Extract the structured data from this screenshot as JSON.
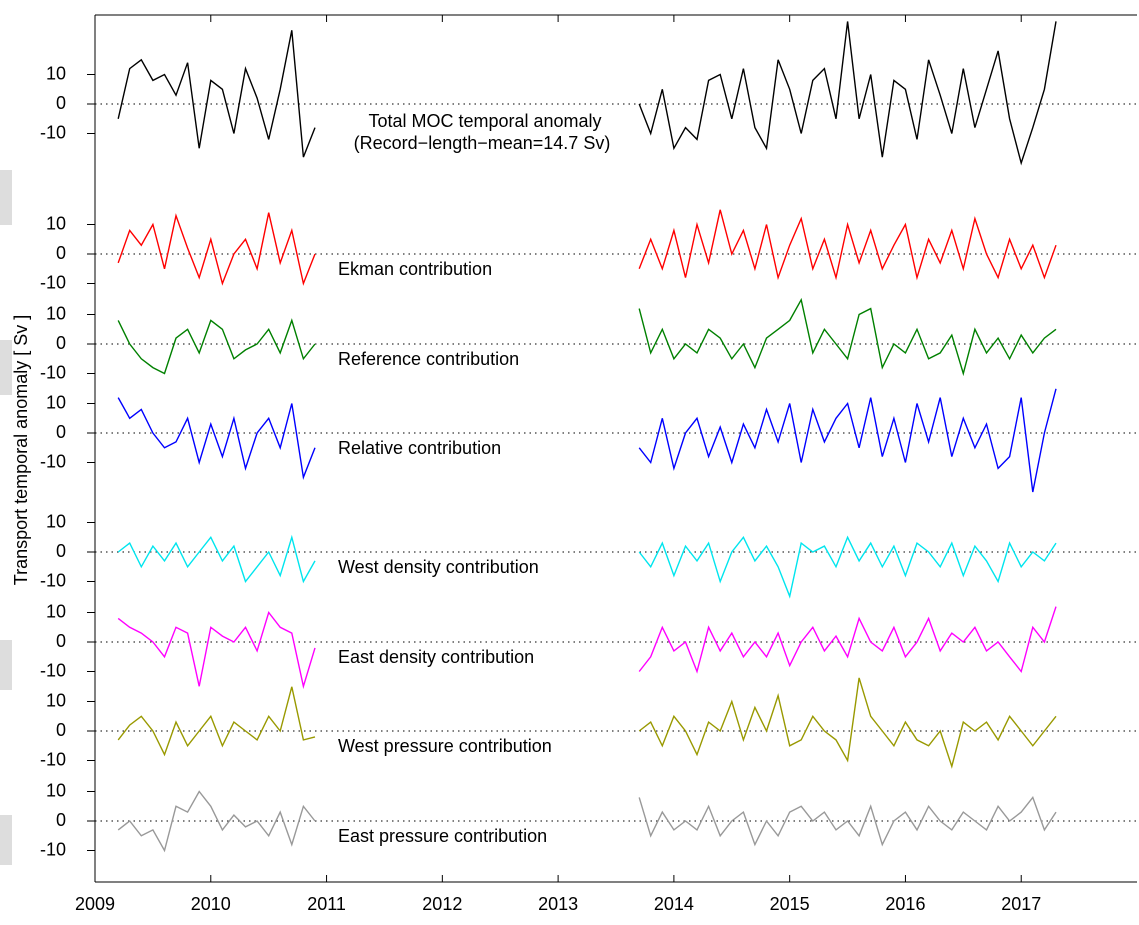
{
  "chart_data": {
    "type": "line",
    "ylabel": "Transport temporal anomaly [ Sv ]",
    "note": "(Record−length−mean=14.7 Sv)",
    "xlim": [
      2009,
      2018
    ],
    "xticks": [
      2009,
      2010,
      2011,
      2012,
      2013,
      2014,
      2015,
      2016,
      2017
    ],
    "x": [
      2009.2,
      2009.3,
      2009.4,
      2009.5,
      2009.6,
      2009.7,
      2009.8,
      2009.9,
      2010,
      2010.1,
      2010.2,
      2010.3,
      2010.4,
      2010.5,
      2010.6,
      2010.7,
      2010.8,
      2010.9,
      2012,
      2013.7,
      2013.8,
      2013.9,
      2014,
      2014.1,
      2014.2,
      2014.3,
      2014.4,
      2014.5,
      2014.6,
      2014.7,
      2014.8,
      2014.9,
      2015,
      2015.1,
      2015.2,
      2015.3,
      2015.4,
      2015.5,
      2015.6,
      2015.7,
      2015.8,
      2015.9,
      2016,
      2016.1,
      2016.2,
      2016.3,
      2016.4,
      2016.5,
      2016.6,
      2016.7,
      2016.8,
      2016.9,
      2017,
      2017.1,
      2017.2,
      2017.3
    ],
    "series": [
      {
        "name": "Total MOC temporal anomaly",
        "color": "#000000",
        "ylim": [
          -30,
          30
        ],
        "yticks": [
          -10,
          0,
          10
        ],
        "values": [
          -5,
          12,
          15,
          8,
          10,
          3,
          14,
          -15,
          8,
          5,
          -10,
          12,
          2,
          -12,
          5,
          25,
          -18,
          -8,
          null,
          0,
          -10,
          5,
          -15,
          -8,
          -12,
          8,
          10,
          -5,
          12,
          -8,
          -15,
          15,
          5,
          -10,
          8,
          12,
          -5,
          28,
          -5,
          10,
          -18,
          8,
          5,
          -12,
          15,
          3,
          -10,
          12,
          -8,
          5,
          18,
          -5,
          -20,
          -8,
          5,
          28
        ]
      },
      {
        "name": "Ekman contribution",
        "color": "#ff0000",
        "ylim": [
          -15,
          15
        ],
        "yticks": [
          -10,
          0,
          10
        ],
        "values": [
          -3,
          8,
          3,
          10,
          -5,
          13,
          2,
          -8,
          5,
          -10,
          0,
          5,
          -5,
          14,
          -3,
          8,
          -10,
          0,
          null,
          -5,
          5,
          -5,
          8,
          -8,
          10,
          -3,
          15,
          0,
          8,
          -5,
          10,
          -8,
          3,
          12,
          -5,
          5,
          -8,
          10,
          -3,
          8,
          -5,
          3,
          10,
          -8,
          5,
          -3,
          8,
          -5,
          12,
          0,
          -8,
          5,
          -5,
          3,
          -8,
          3
        ]
      },
      {
        "name": "Reference contribution",
        "color": "#008000",
        "ylim": [
          -15,
          15
        ],
        "yticks": [
          -10,
          0,
          10
        ],
        "values": [
          8,
          0,
          -5,
          -8,
          -10,
          2,
          5,
          -3,
          8,
          5,
          -5,
          -2,
          0,
          5,
          -3,
          8,
          -5,
          0,
          null,
          12,
          -3,
          5,
          -5,
          0,
          -3,
          5,
          2,
          -5,
          0,
          -8,
          2,
          5,
          8,
          15,
          -3,
          5,
          0,
          -5,
          10,
          12,
          -8,
          0,
          -3,
          5,
          -5,
          -3,
          3,
          -10,
          5,
          -3,
          2,
          -5,
          3,
          -3,
          2,
          5
        ]
      },
      {
        "name": "Relative contribution",
        "color": "#0000ff",
        "ylim": [
          -15,
          15
        ],
        "yticks": [
          -10,
          0,
          10
        ],
        "values": [
          12,
          5,
          8,
          0,
          -5,
          -3,
          5,
          -10,
          3,
          -8,
          5,
          -12,
          0,
          5,
          -5,
          10,
          -15,
          -5,
          null,
          -5,
          -10,
          5,
          -12,
          0,
          5,
          -8,
          2,
          -10,
          3,
          -5,
          8,
          -3,
          10,
          -10,
          8,
          -3,
          5,
          10,
          -5,
          12,
          -8,
          5,
          -10,
          10,
          -3,
          12,
          -8,
          5,
          -5,
          3,
          -12,
          -8,
          12,
          -20,
          0,
          15
        ]
      },
      {
        "name": "West density contribution",
        "color": "#00e5ee",
        "ylim": [
          -15,
          15
        ],
        "yticks": [
          -10,
          0,
          10
        ],
        "values": [
          0,
          3,
          -5,
          2,
          -3,
          3,
          -5,
          0,
          5,
          -3,
          2,
          -10,
          -5,
          0,
          -8,
          5,
          -10,
          -3,
          null,
          0,
          -5,
          3,
          -8,
          2,
          -3,
          3,
          -10,
          0,
          5,
          -3,
          2,
          -5,
          -15,
          3,
          0,
          2,
          -5,
          5,
          -3,
          3,
          -5,
          2,
          -8,
          3,
          0,
          -5,
          3,
          -8,
          2,
          -3,
          -10,
          3,
          -5,
          0,
          -3,
          3
        ]
      },
      {
        "name": "East density contribution",
        "color": "#ff00ff",
        "ylim": [
          -15,
          15
        ],
        "yticks": [
          -10,
          0,
          10
        ],
        "values": [
          8,
          5,
          3,
          0,
          -5,
          5,
          3,
          -15,
          5,
          2,
          0,
          5,
          -3,
          10,
          5,
          3,
          -15,
          -2,
          null,
          -10,
          -5,
          5,
          -3,
          0,
          -10,
          5,
          -3,
          3,
          -5,
          0,
          -5,
          3,
          -8,
          0,
          5,
          -3,
          2,
          -5,
          8,
          0,
          -3,
          5,
          -5,
          0,
          8,
          -3,
          3,
          0,
          5,
          -3,
          0,
          -5,
          -10,
          5,
          0,
          12
        ]
      },
      {
        "name": "West pressure contribution",
        "color": "#999900",
        "ylim": [
          -15,
          15
        ],
        "yticks": [
          -10,
          0,
          10
        ],
        "values": [
          -3,
          2,
          5,
          0,
          -8,
          3,
          -5,
          0,
          5,
          -5,
          3,
          0,
          -3,
          5,
          0,
          15,
          -3,
          -2,
          null,
          0,
          3,
          -5,
          5,
          0,
          -8,
          3,
          0,
          10,
          -3,
          8,
          0,
          12,
          -5,
          -3,
          5,
          0,
          -3,
          -10,
          18,
          5,
          0,
          -5,
          3,
          -3,
          -5,
          0,
          -12,
          3,
          0,
          3,
          -3,
          5,
          0,
          -5,
          0,
          5
        ]
      },
      {
        "name": "East pressure contribution",
        "color": "#999999",
        "ylim": [
          -15,
          15
        ],
        "yticks": [
          -10,
          0,
          10
        ],
        "values": [
          -3,
          0,
          -5,
          -3,
          -10,
          5,
          3,
          10,
          5,
          -3,
          2,
          -2,
          0,
          -5,
          3,
          -8,
          5,
          0,
          null,
          8,
          -5,
          3,
          -3,
          0,
          -3,
          5,
          -5,
          0,
          3,
          -8,
          0,
          -5,
          3,
          5,
          0,
          3,
          -3,
          0,
          -5,
          5,
          -8,
          0,
          3,
          -3,
          5,
          0,
          -3,
          3,
          0,
          -3,
          5,
          0,
          3,
          8,
          -3,
          3
        ]
      }
    ]
  }
}
